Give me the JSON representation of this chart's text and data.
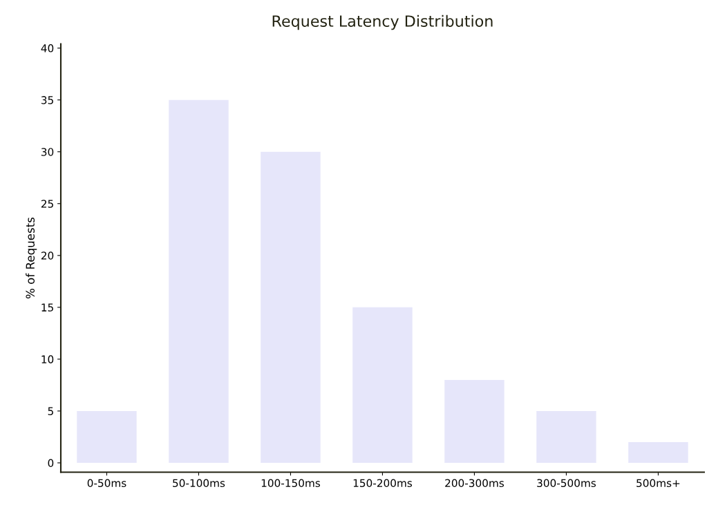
{
  "chart_data": {
    "type": "bar",
    "title": "Request Latency Distribution",
    "ylabel": "% of Requests",
    "categories": [
      "0-50ms",
      "50-100ms",
      "100-150ms",
      "150-200ms",
      "200-300ms",
      "300-500ms",
      "500ms+"
    ],
    "values": [
      5,
      35,
      30,
      15,
      8,
      5,
      2
    ],
    "color": "#e6e6fa",
    "ylim": [
      -0.9,
      40.4
    ],
    "yticks": [
      0,
      5,
      10,
      15,
      20,
      25,
      30,
      35,
      40
    ],
    "grid": false,
    "legend": false
  }
}
